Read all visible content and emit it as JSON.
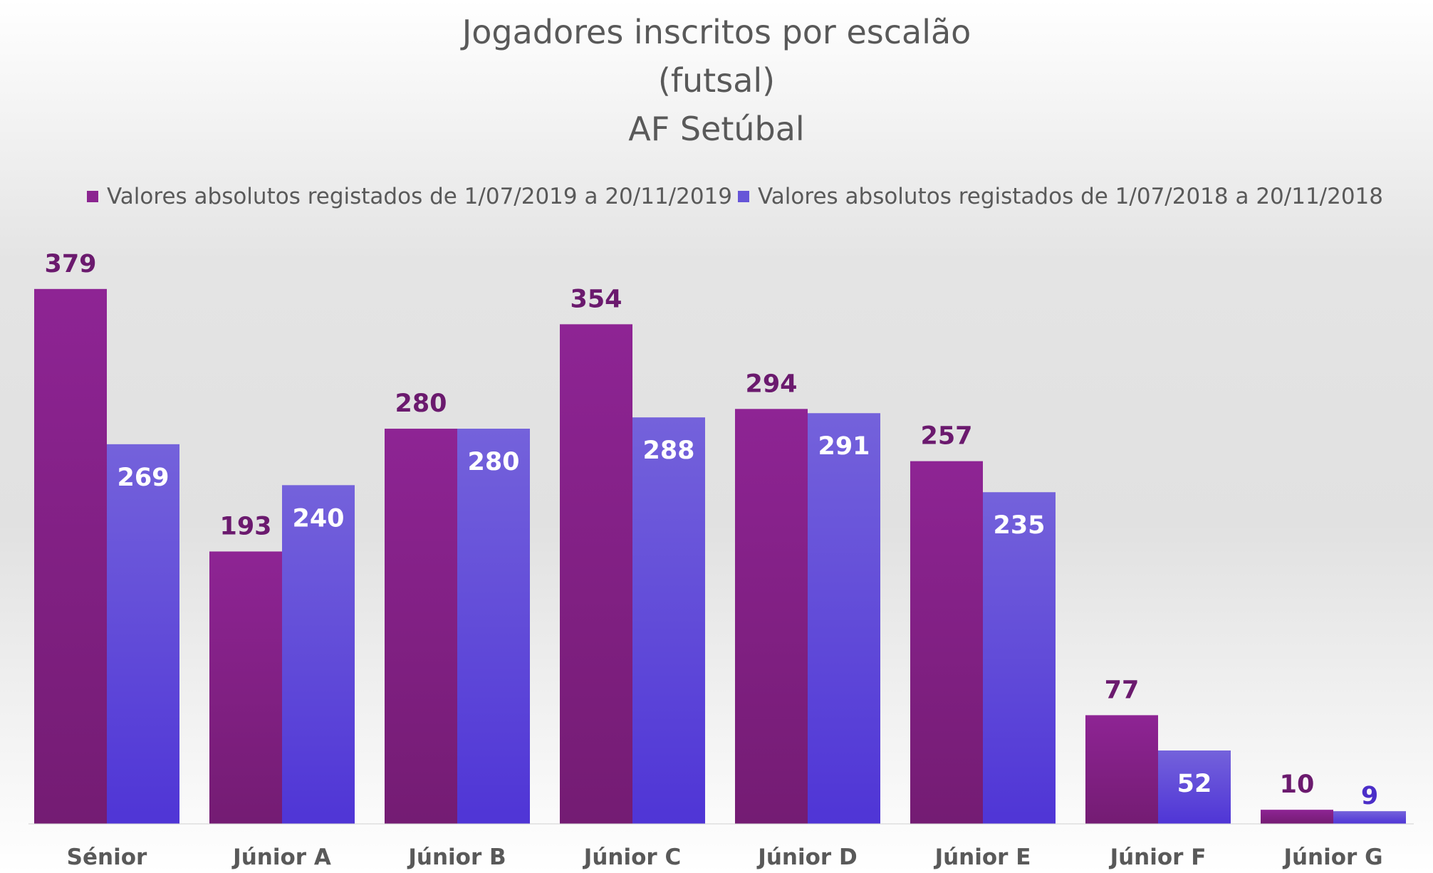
{
  "chart_data": {
    "type": "bar",
    "title_lines": [
      "Jogadores inscritos por escalão",
      "(futsal)",
      "AF Setúbal"
    ],
    "xlabel": "",
    "ylabel": "",
    "ylim": [
      0,
      400
    ],
    "grid": false,
    "legend_position": "top",
    "categories": [
      "Sénior",
      "Júnior A",
      "Júnior B",
      "Júnior C",
      "Júnior D",
      "Júnior E",
      "Júnior F",
      "Júnior G"
    ],
    "series": [
      {
        "name": "Valores absolutos registados de 1/07/2019 a 20/11/2019",
        "values": [
          379,
          193,
          280,
          354,
          294,
          257,
          77,
          10
        ],
        "color": "#8B2590",
        "label_color": "#6B1A6E"
      },
      {
        "name": "Valores absolutos registados de 1/07/2018 a 20/11/2018",
        "values": [
          269,
          240,
          280,
          288,
          291,
          235,
          52,
          9
        ],
        "color": "#6655D8",
        "label_color": "#ffffff"
      }
    ]
  }
}
